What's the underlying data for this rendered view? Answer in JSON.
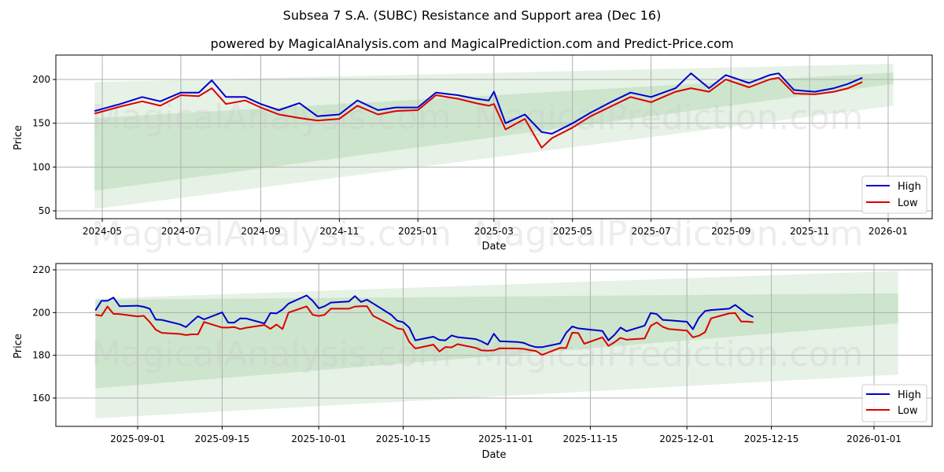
{
  "title": "Subsea 7 S.A. (SUBC) Resistance and Support area (Dec 16)",
  "subtitle": "powered by MagicalAnalysis.com and MagicalPrediction.com and Predict-Price.com",
  "watermarks": [
    "MagicalAnalysis.com",
    "MagicalPrediction.com"
  ],
  "colors": {
    "high": "#0000cc",
    "low": "#dd0000",
    "band_dark": "#c8e3c8",
    "band_light": "#e3f1e3"
  },
  "chart_data": [
    {
      "type": "line",
      "title": "Full history",
      "xlabel": "Date",
      "ylabel": "Price",
      "ylim": [
        40,
        228
      ],
      "yticks": [
        50,
        100,
        150,
        200
      ],
      "xticks": [
        "2024-05",
        "2024-07",
        "2024-09",
        "2024-11",
        "2025-01",
        "2025-03",
        "2025-05",
        "2025-07",
        "2025-09",
        "2025-11",
        "2026-01"
      ],
      "grid": true,
      "legend": {
        "position": "lower right",
        "entries": [
          "High",
          "Low"
        ]
      },
      "x": [
        "2024-04-25",
        "2024-05-15",
        "2024-06-01",
        "2024-06-15",
        "2024-07-01",
        "2024-07-15",
        "2024-07-25",
        "2024-08-05",
        "2024-08-20",
        "2024-09-01",
        "2024-09-15",
        "2024-10-01",
        "2024-10-15",
        "2024-11-01",
        "2024-11-15",
        "2024-12-01",
        "2024-12-15",
        "2025-01-01",
        "2025-01-15",
        "2025-02-01",
        "2025-02-15",
        "2025-02-25",
        "2025-03-01",
        "2025-03-10",
        "2025-03-25",
        "2025-04-07",
        "2025-04-15",
        "2025-05-01",
        "2025-05-15",
        "2025-06-01",
        "2025-06-15",
        "2025-07-01",
        "2025-07-20",
        "2025-08-01",
        "2025-08-15",
        "2025-08-28",
        "2025-09-15",
        "2025-10-01",
        "2025-10-08",
        "2025-10-20",
        "2025-11-05",
        "2025-11-20",
        "2025-12-01",
        "2025-12-12"
      ],
      "series": [
        {
          "name": "High",
          "values": [
            164,
            172,
            180,
            175,
            185,
            185,
            199,
            180,
            180,
            172,
            165,
            173,
            158,
            160,
            176,
            165,
            168,
            168,
            185,
            182,
            178,
            176,
            186,
            150,
            160,
            140,
            138,
            150,
            162,
            175,
            185,
            180,
            190,
            207,
            190,
            205,
            196,
            205,
            207,
            188,
            186,
            190,
            195,
            202
          ]
        },
        {
          "name": "Low",
          "values": [
            161,
            169,
            175,
            170,
            182,
            181,
            190,
            172,
            176,
            168,
            160,
            156,
            153,
            155,
            170,
            160,
            164,
            165,
            182,
            178,
            173,
            170,
            172,
            143,
            155,
            122,
            133,
            145,
            158,
            170,
            180,
            174,
            186,
            190,
            186,
            200,
            191,
            200,
            202,
            184,
            183,
            186,
            190,
            197
          ]
        }
      ],
      "bands": [
        {
          "name": "outer",
          "start": {
            "x": "2024-04-25",
            "upper": 197,
            "lower": 52
          },
          "end": {
            "x": "2026-01-05",
            "upper": 218,
            "lower": 170
          }
        },
        {
          "name": "inner",
          "start": {
            "x": "2024-04-25",
            "upper": 156,
            "lower": 73
          },
          "end": {
            "x": "2026-01-05",
            "upper": 208,
            "lower": 195
          }
        }
      ]
    },
    {
      "type": "line",
      "title": "Recent zoom",
      "xlabel": "Date",
      "ylabel": "Price",
      "ylim": [
        147,
        222
      ],
      "yticks": [
        160,
        180,
        200,
        220
      ],
      "xticks": [
        "2025-09-01",
        "2025-09-15",
        "2025-10-01",
        "2025-10-15",
        "2025-11-01",
        "2025-11-15",
        "2025-12-01",
        "2025-12-15",
        "2026-01-01"
      ],
      "grid": true,
      "legend": {
        "position": "lower right",
        "entries": [
          "High",
          "Low"
        ]
      },
      "x": [
        "2025-08-25",
        "2025-08-26",
        "2025-08-27",
        "2025-08-28",
        "2025-08-29",
        "2025-09-01",
        "2025-09-02",
        "2025-09-03",
        "2025-09-04",
        "2025-09-05",
        "2025-09-08",
        "2025-09-09",
        "2025-09-10",
        "2025-09-11",
        "2025-09-12",
        "2025-09-15",
        "2025-09-16",
        "2025-09-17",
        "2025-09-18",
        "2025-09-19",
        "2025-09-22",
        "2025-09-23",
        "2025-09-24",
        "2025-09-25",
        "2025-09-26",
        "2025-09-29",
        "2025-09-30",
        "2025-10-01",
        "2025-10-02",
        "2025-10-03",
        "2025-10-06",
        "2025-10-07",
        "2025-10-08",
        "2025-10-09",
        "2025-10-10",
        "2025-10-13",
        "2025-10-14",
        "2025-10-15",
        "2025-10-16",
        "2025-10-17",
        "2025-10-20",
        "2025-10-21",
        "2025-10-22",
        "2025-10-23",
        "2025-10-24",
        "2025-10-27",
        "2025-10-28",
        "2025-10-29",
        "2025-10-30",
        "2025-10-31",
        "2025-11-03",
        "2025-11-04",
        "2025-11-05",
        "2025-11-06",
        "2025-11-07",
        "2025-11-10",
        "2025-11-11",
        "2025-11-12",
        "2025-11-13",
        "2025-11-14",
        "2025-11-17",
        "2025-11-18",
        "2025-11-19",
        "2025-11-20",
        "2025-11-21",
        "2025-11-24",
        "2025-11-25",
        "2025-11-26",
        "2025-11-27",
        "2025-11-28",
        "2025-12-01",
        "2025-12-02",
        "2025-12-03",
        "2025-12-04",
        "2025-12-05",
        "2025-12-08",
        "2025-12-09",
        "2025-12-10",
        "2025-12-11",
        "2025-12-12"
      ],
      "series": [
        {
          "name": "High",
          "values": [
            201,
            205.5,
            205.5,
            207,
            203,
            203.2,
            202.7,
            201.8,
            196.7,
            196.6,
            194.5,
            193.2,
            195.8,
            198.3,
            196.8,
            200.1,
            195.3,
            195.3,
            197.3,
            197.2,
            194.9,
            199.8,
            199.6,
            201.4,
            204.2,
            208,
            205.5,
            202,
            203,
            204.7,
            205.2,
            207.7,
            205,
            206,
            204.3,
            199,
            196.2,
            195.5,
            193,
            187,
            188.7,
            187.2,
            187,
            189.3,
            188.5,
            187.6,
            186.5,
            185,
            190.1,
            186.6,
            186.2,
            185.8,
            184.6,
            183.8,
            183.8,
            185.6,
            190.5,
            193.5,
            192.6,
            192.3,
            191.4,
            187,
            189.6,
            193,
            191.3,
            193.9,
            199.8,
            199.3,
            196.6,
            196.4,
            195.7,
            192.2,
            197.6,
            200.7,
            201.2,
            201.8,
            203.6,
            201.5,
            199.3,
            197.9
          ]
        },
        {
          "name": "Low",
          "values": [
            199,
            198.5,
            202.8,
            199.4,
            199.3,
            198.2,
            198.5,
            195.6,
            192,
            190.5,
            190,
            189.5,
            189.8,
            189.8,
            195.6,
            193,
            193,
            193.2,
            192.3,
            192.9,
            194.2,
            192.4,
            194.4,
            192.3,
            200,
            202.9,
            199,
            198.4,
            199,
            201.8,
            201.8,
            202.8,
            203,
            203,
            198.5,
            194.2,
            192.6,
            192.1,
            186.3,
            183.2,
            185,
            181.8,
            183.9,
            183.7,
            185.2,
            183.5,
            182.3,
            182.2,
            182.3,
            183.3,
            183.2,
            183,
            182.4,
            182,
            180.2,
            183.5,
            183.4,
            190.6,
            190.4,
            185.4,
            188.4,
            184.4,
            186.1,
            188.2,
            187.3,
            187.9,
            193.7,
            195.4,
            193.3,
            192.3,
            191.6,
            188.4,
            189.2,
            190.8,
            197.3,
            199.6,
            199.8,
            195.8,
            195.8,
            195.5
          ]
        }
      ],
      "bands": [
        {
          "name": "outer",
          "start": {
            "x": "2025-08-25",
            "upper": 206.5,
            "lower": 150.5
          },
          "end": {
            "x": "2026-01-05",
            "upper": 219.5,
            "lower": 171
          }
        },
        {
          "name": "inner",
          "start": {
            "x": "2025-08-25",
            "upper": 206,
            "lower": 164.5
          },
          "end": {
            "x": "2026-01-05",
            "upper": 209,
            "lower": 195
          }
        }
      ]
    }
  ]
}
